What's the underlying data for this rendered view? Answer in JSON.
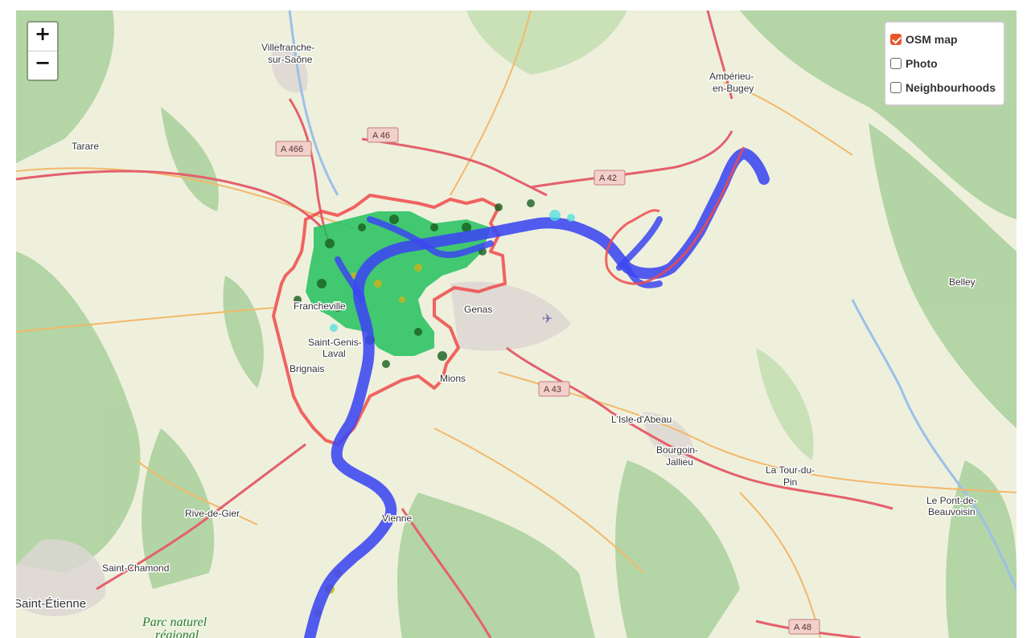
{
  "map": {
    "zoom_in_label": "+",
    "zoom_out_label": "−",
    "layers": [
      {
        "label": "OSM map",
        "checked": true
      },
      {
        "label": "Photo",
        "checked": false
      },
      {
        "label": "Neighbourhoods",
        "checked": false
      }
    ],
    "places": {
      "villefranche_1": "Villefranche-",
      "villefranche_2": "sur-Saône",
      "tarare": "Tarare",
      "amberieu_1": "Ambérieu-",
      "amberieu_2": "en-Bugey",
      "belley": "Belley",
      "genas": "Genas",
      "francheville": "Francheville",
      "saint_genis_1": "Saint-Genis-",
      "saint_genis_2": "Laval",
      "brignais": "Brignais",
      "mions": "Mions",
      "lisle": "L'Isle-d'Abeau",
      "bourgoin_1": "Bourgoin-",
      "bourgoin_2": "Jallieu",
      "latour_1": "La Tour-du-",
      "latour_2": "Pin",
      "lepont_1": "Le Pont-de-",
      "lepont_2": "Beauvoisin",
      "rivedegier": "Rive-de-Gier",
      "saintchamond": "Saint-Chamond",
      "saintetienne": "Saint-Étienne",
      "vienne": "Vienne",
      "park_1": "Parc naturel",
      "park_2": "régional"
    },
    "roads": {
      "a466": "A 466",
      "a46": "A 46",
      "a42": "A 42",
      "a43": "A 43",
      "a48": "A 48"
    },
    "colors": {
      "land": "#eef0dc",
      "forest": "#add19e",
      "motorway": "#e4606c",
      "route_overlay": "#3b46f0",
      "green_overlay": "#22c15e",
      "dark_overlay": "#1b5e20",
      "boundary_red": "#f04a4a",
      "checkbox_accent": "#e8572a"
    }
  }
}
